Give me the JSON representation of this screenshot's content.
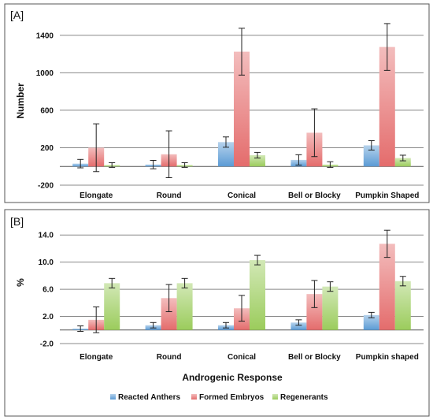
{
  "chart_data": [
    {
      "type": "bar",
      "panel_label": "[A]",
      "categories": [
        "Elongate",
        "Round",
        "Conical",
        "Bell or Blocky",
        "Pumpkin Shaped"
      ],
      "ylabel": "Number",
      "xlabel": "",
      "ylim": [
        -200,
        1600
      ],
      "yticks": [
        -200,
        200,
        600,
        1000,
        1400
      ],
      "yticks_labels": [
        "-200",
        "200",
        "600",
        "1000",
        "1400"
      ],
      "grid": true,
      "series": [
        {
          "name": "Reacted Anthers",
          "color": "#5b9bd5",
          "values": [
            30,
            20,
            260,
            70,
            225
          ],
          "errors": [
            45,
            45,
            55,
            55,
            50
          ]
        },
        {
          "name": "Formed Embryos",
          "color": "#e46c6c",
          "values": [
            200,
            130,
            1225,
            360,
            1275
          ],
          "errors": [
            255,
            250,
            250,
            255,
            250
          ]
        },
        {
          "name": "Regenerants",
          "color": "#9bcc5c",
          "values": [
            15,
            15,
            120,
            20,
            90
          ],
          "errors": [
            25,
            25,
            30,
            30,
            30
          ]
        }
      ]
    },
    {
      "type": "bar",
      "panel_label": "[B]",
      "categories": [
        "Elongate",
        "Round",
        "Conical",
        "Bell or Blocky",
        "Pumpkin shaped"
      ],
      "ylabel": "%",
      "xlabel": "Androgenic Response",
      "ylim": [
        -2,
        16
      ],
      "yticks": [
        -2,
        2,
        6,
        10,
        14
      ],
      "yticks_labels": [
        "-2.0",
        "2.0",
        "6.0",
        "10.0",
        "14.0"
      ],
      "grid": true,
      "legend_position": "bottom",
      "series": [
        {
          "name": "Reacted Anthers",
          "color": "#5b9bd5",
          "values": [
            0.2,
            0.7,
            0.7,
            1.1,
            2.2
          ],
          "errors": [
            0.4,
            0.4,
            0.4,
            0.4,
            0.4
          ]
        },
        {
          "name": "Formed Embryos",
          "color": "#e46c6c",
          "values": [
            1.5,
            4.7,
            3.2,
            5.3,
            12.7
          ],
          "errors": [
            1.9,
            2.0,
            1.9,
            2.0,
            2.0
          ]
        },
        {
          "name": "Regenerants",
          "color": "#9bcc5c",
          "values": [
            6.9,
            6.9,
            10.3,
            6.4,
            7.2
          ],
          "errors": [
            0.7,
            0.7,
            0.7,
            0.7,
            0.7
          ]
        }
      ]
    }
  ],
  "legend": {
    "entries": [
      {
        "name": "Reacted Anthers",
        "color": "#5b9bd5"
      },
      {
        "name": "Formed Embryos",
        "color": "#e46c6c"
      },
      {
        "name": "Regenerants",
        "color": "#9bcc5c"
      }
    ]
  }
}
